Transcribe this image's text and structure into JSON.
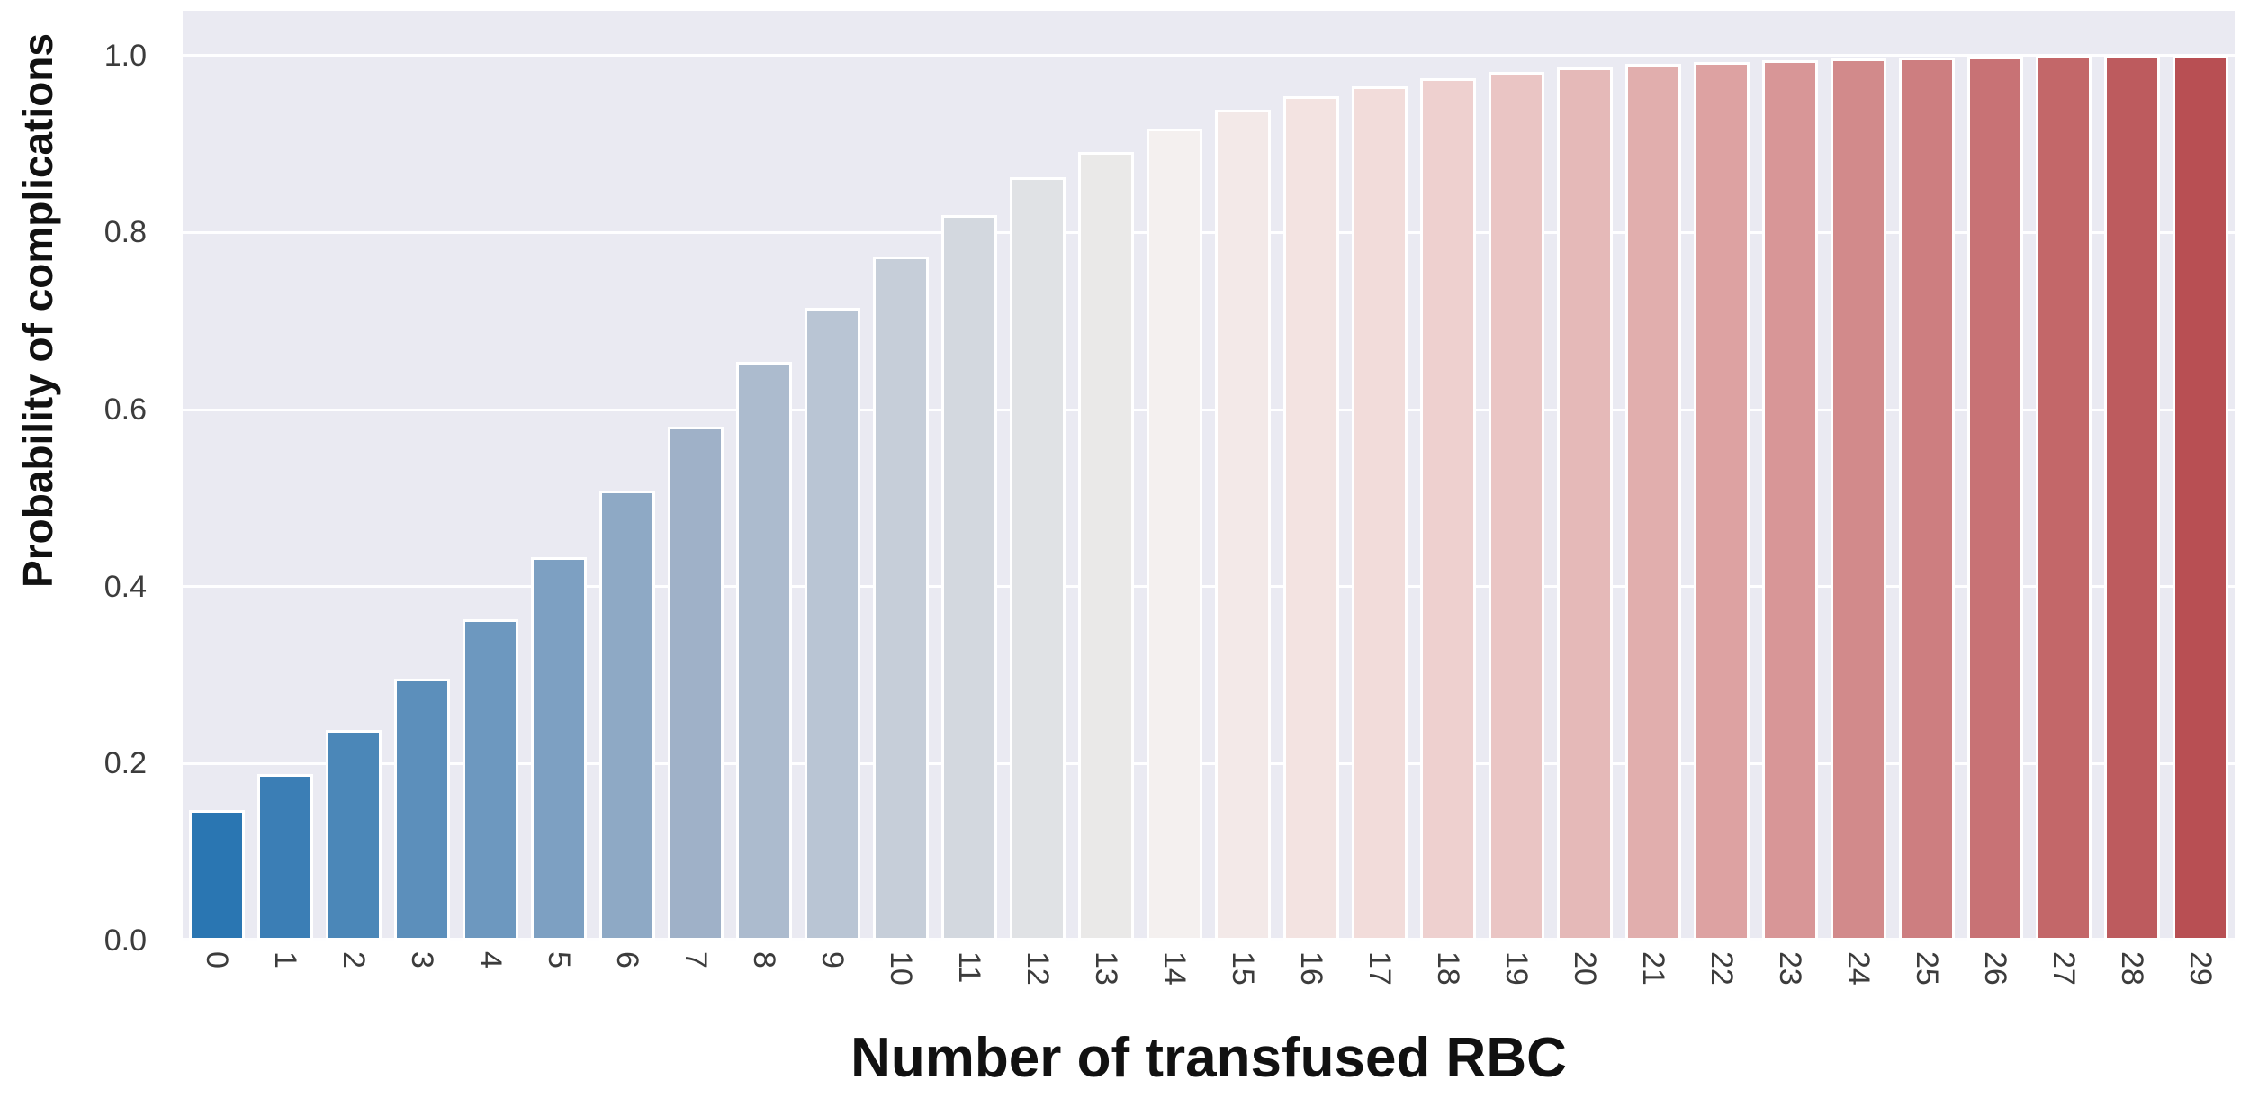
{
  "chart_data": {
    "type": "bar",
    "title": "",
    "xlabel": "Number of transfused RBC",
    "ylabel": "Probability of complications",
    "categories": [
      "0",
      "1",
      "2",
      "3",
      "4",
      "5",
      "6",
      "7",
      "8",
      "9",
      "10",
      "11",
      "12",
      "13",
      "14",
      "15",
      "16",
      "17",
      "18",
      "19",
      "20",
      "21",
      "22",
      "23",
      "24",
      "25",
      "26",
      "27",
      "28",
      "29"
    ],
    "values": [
      0.144,
      0.185,
      0.235,
      0.293,
      0.36,
      0.43,
      0.505,
      0.578,
      0.651,
      0.712,
      0.77,
      0.817,
      0.859,
      0.888,
      0.914,
      0.936,
      0.951,
      0.962,
      0.971,
      0.978,
      0.983,
      0.987,
      0.99,
      0.992,
      0.994,
      0.995,
      0.996,
      0.997,
      0.9975,
      0.998
    ],
    "bar_colors": [
      "#2a76b2",
      "#3b7eb5",
      "#4b87b8",
      "#5c8fbb",
      "#6d98bf",
      "#7da0c2",
      "#8ea9c5",
      "#9fb1c8",
      "#acbbce",
      "#b9c5d4",
      "#c6ced9",
      "#d3d8df",
      "#e0e2e5",
      "#eae9e8",
      "#f4f0ef",
      "#f3e9e8",
      "#f3e3e1",
      "#f2dcda",
      "#eed0cf",
      "#eac5c4",
      "#e5b9b8",
      "#e1aead",
      "#dda2a2",
      "#d89697",
      "#d28a8b",
      "#cd7e80",
      "#c87275",
      "#c36769",
      "#bd5b5e",
      "#b84f53"
    ],
    "yticks": [
      "0.0",
      "0.2",
      "0.4",
      "0.6",
      "0.8",
      "1.0"
    ],
    "ylim": [
      0,
      1.05
    ],
    "grid": "horizontal-white",
    "legend": "none",
    "palette": "blue-white-red diverging",
    "plot_background": "#eaeaf2",
    "figure_background": "#ffffff",
    "tick_color": "#3c3c3c",
    "label_color": "#111111"
  }
}
